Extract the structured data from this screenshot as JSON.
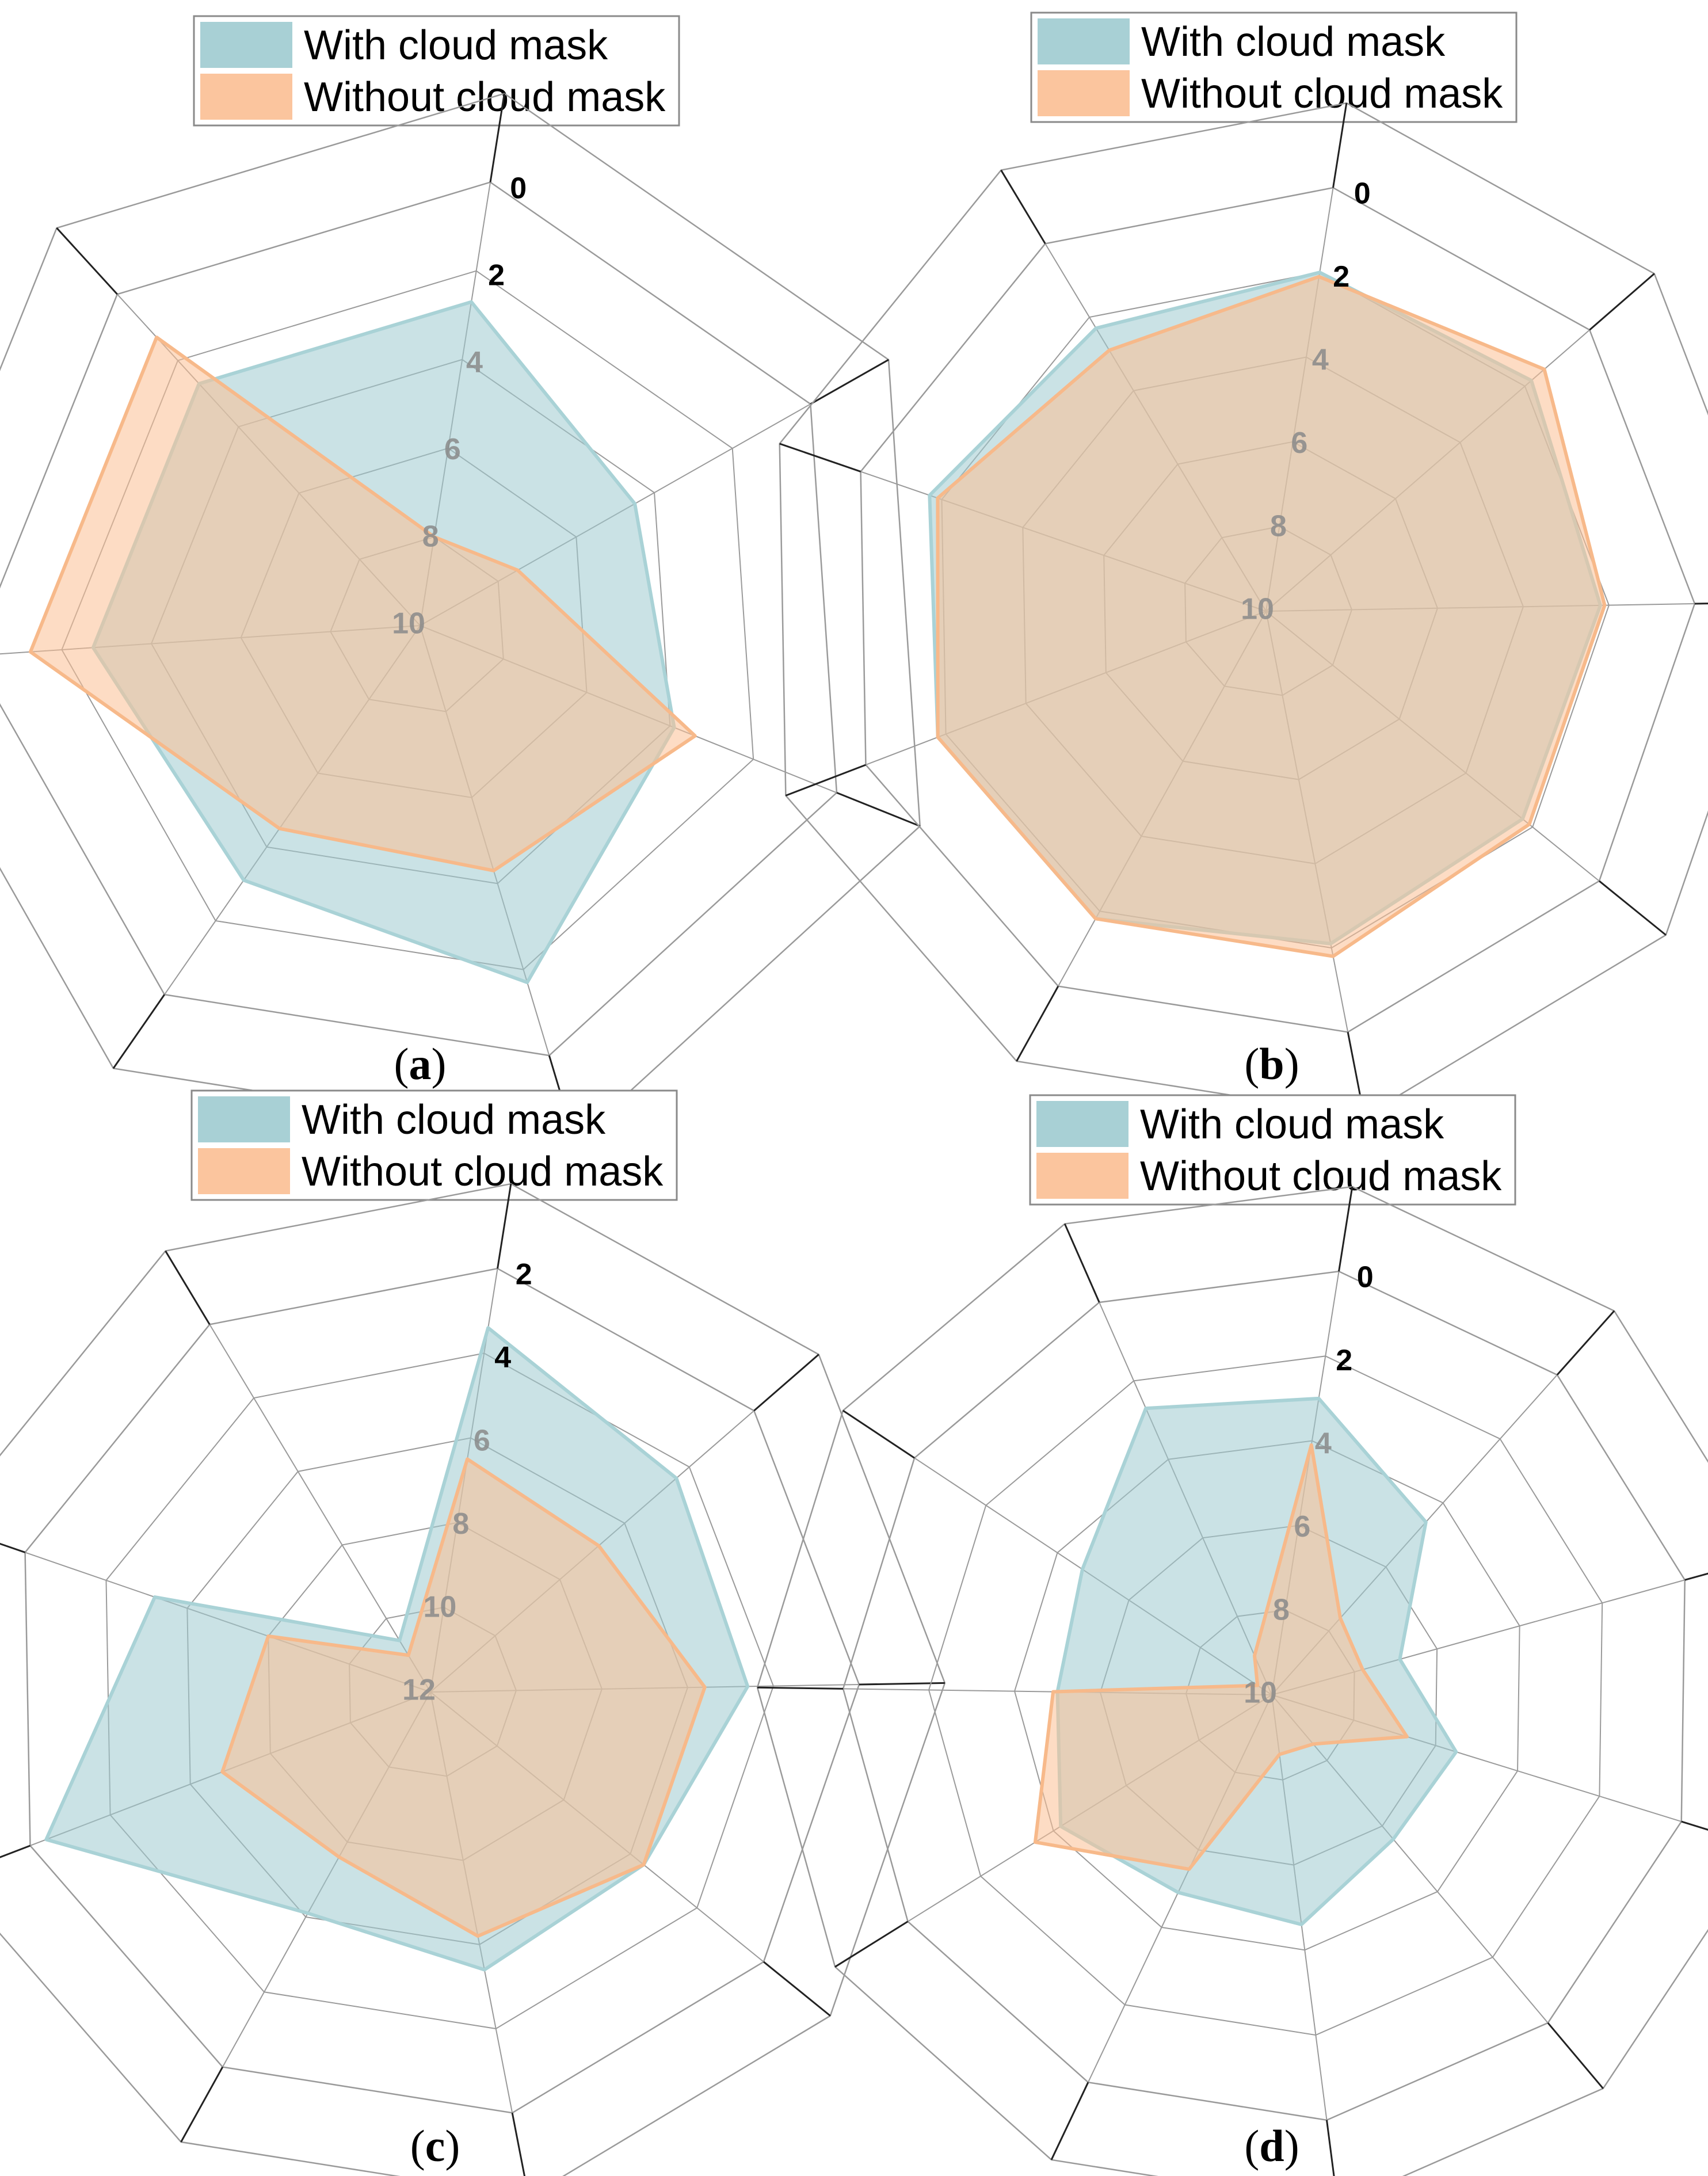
{
  "legend": {
    "with_label": "With cloud mask",
    "without_label": "Without cloud mask"
  },
  "colors": {
    "with_fill": "#9ecbd0",
    "with_stroke": "#a9d2d6",
    "without_fill": "#fbbf93",
    "without_stroke": "#f7b98a",
    "spoke_dark": "#222222",
    "grid_light": "#9a9a9a",
    "tick_outer": "#000000",
    "tick_inner": "#8a8a8a"
  },
  "chart_data": [
    {
      "type": "radar",
      "panel": "a",
      "caption": "(a)",
      "caption_letter": "a",
      "n_axes": 7,
      "start_angle_deg": 81,
      "rmin": 0,
      "rmax": 10,
      "inverted": true,
      "tick_labels": [
        "0",
        "2",
        "4",
        "6",
        "8",
        "10"
      ],
      "tick_values": [
        0,
        2,
        4,
        6,
        8,
        10
      ],
      "series": [
        {
          "name": "With cloud mask",
          "values": [
            2.7,
            4.5,
            3.9,
            1.7,
            3.1,
            2.7,
            2.7
          ]
        },
        {
          "name": "Without cloud mask",
          "values": [
            8.0,
            7.5,
            3.4,
            4.3,
            4.5,
            1.3,
            1.3
          ]
        }
      ]
    },
    {
      "type": "radar",
      "panel": "b",
      "caption": "(b)",
      "caption_letter": "b",
      "n_axes": 9,
      "start_angle_deg": 81,
      "rmin": 0,
      "rmax": 10,
      "inverted": true,
      "tick_labels": [
        "0",
        "2",
        "4",
        "6",
        "8",
        "10"
      ],
      "tick_values": [
        0,
        2,
        4,
        6,
        8,
        10
      ],
      "series": [
        {
          "name": "With cloud mask",
          "values": [
            2.0,
            1.8,
            2.2,
            2.3,
            2.1,
            1.8,
            1.8,
            1.7,
            2.3
          ]
        },
        {
          "name": "Without cloud mask",
          "values": [
            2.1,
            1.4,
            2.1,
            2.1,
            1.8,
            1.8,
            1.8,
            1.9,
            2.9
          ]
        }
      ]
    },
    {
      "type": "radar",
      "panel": "c",
      "caption": "(c)",
      "caption_letter": "c",
      "n_axes": 9,
      "start_angle_deg": 81,
      "rmin": 2,
      "rmax": 12,
      "inverted": true,
      "tick_labels": [
        "2",
        "4",
        "6",
        "8",
        "10",
        "12"
      ],
      "tick_values": [
        2,
        4,
        6,
        8,
        10,
        12
      ],
      "series": [
        {
          "name": "With cloud mask",
          "values": [
            3.4,
            4.4,
            4.6,
            5.6,
            5.4,
            6.1,
            2.4,
            5.2,
            10.6
          ]
        },
        {
          "name": "Without cloud mask",
          "values": [
            6.5,
            6.8,
            5.6,
            5.6,
            6.2,
            7.6,
            6.8,
            8.0,
            11.0
          ]
        }
      ]
    },
    {
      "type": "radar",
      "panel": "d",
      "caption": "(d)",
      "caption_letter": "d",
      "n_axes": 11,
      "start_angle_deg": 81,
      "rmin": 0,
      "rmax": 10,
      "inverted": true,
      "tick_labels": [
        "0",
        "2",
        "4",
        "6",
        "8",
        "10"
      ],
      "tick_values": [
        0,
        2,
        4,
        6,
        8,
        10
      ],
      "series": [
        {
          "name": "With cloud mask",
          "values": [
            3.0,
            4.6,
            6.9,
            5.5,
            5.6,
            4.6,
            4.9,
            4.2,
            5.0,
            4.7,
            2.7
          ]
        },
        {
          "name": "Without cloud mask",
          "values": [
            4.1,
            7.6,
            7.8,
            6.7,
            8.5,
            8.6,
            5.5,
            3.5,
            4.9,
            9.6,
            9.0
          ]
        }
      ]
    }
  ]
}
